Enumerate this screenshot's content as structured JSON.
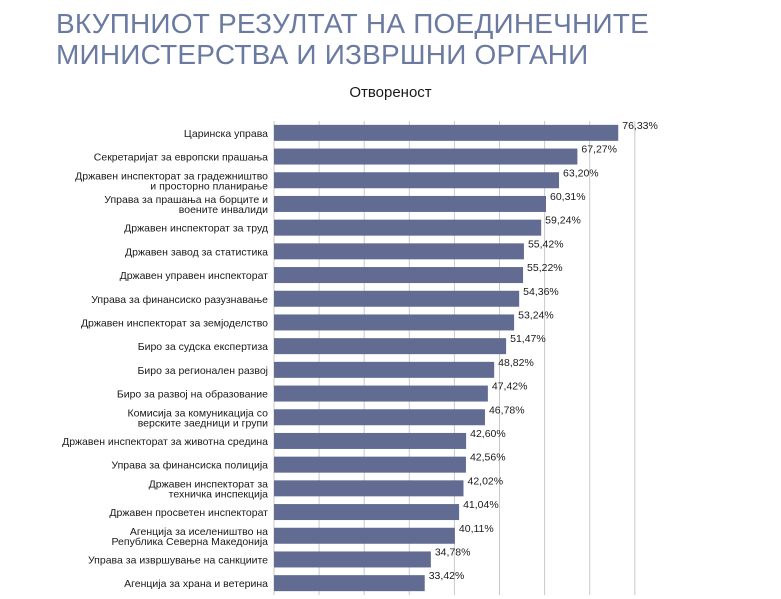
{
  "page": {
    "title_line1": "ВКУПНИОТ РЕЗУЛТАТ НА ПОЕДИНЕЧНИТЕ",
    "title_line2": "МИНИСТЕРСТВА И ИЗВРШНИ ОРГАНИ"
  },
  "chart_data": {
    "type": "bar",
    "orientation": "horizontal",
    "title": "Отвореност",
    "xlabel": "",
    "ylabel": "",
    "xlim": [
      0,
      80
    ],
    "grid": true,
    "bar_color": "#626b92",
    "categories": [
      [
        "Царинска управа"
      ],
      [
        "Секретаријат за европски прашања"
      ],
      [
        "Државен инспекторат за градежништво",
        "и просторно планирање"
      ],
      [
        "Управа за прашања на борците и",
        "воените инвалиди"
      ],
      [
        "Државен инспекторат за труд"
      ],
      [
        "Државен завод за статистика"
      ],
      [
        "Државен управен инспекторат"
      ],
      [
        "Управа за финансиско разузнавање"
      ],
      [
        "Државен инспекторат за земјоделство"
      ],
      [
        "Биро за судска експертиза"
      ],
      [
        "Биро за регионален развој"
      ],
      [
        "Биро за развој на образование"
      ],
      [
        "Комисија за комуникација со",
        "верските заедници и групи"
      ],
      [
        "Државен инспекторат за животна средина"
      ],
      [
        "Управа за финансиска полиција"
      ],
      [
        "Државен инспекторат за",
        "техничка инспекција"
      ],
      [
        "Државен просветен инспекторат"
      ],
      [
        "Агенција за иселеништво на",
        "Република Северна Македонија"
      ],
      [
        "Управа за извршување на санкциите"
      ],
      [
        "Агенција за храна и ветерина"
      ]
    ],
    "values": [
      76.33,
      67.27,
      63.2,
      60.31,
      59.24,
      55.42,
      55.22,
      54.36,
      53.24,
      51.47,
      48.82,
      47.42,
      46.78,
      42.6,
      42.56,
      42.02,
      41.04,
      40.11,
      34.78,
      33.42
    ],
    "value_labels": [
      "76,33%",
      "67,27%",
      "63,20%",
      "60,31%",
      "59,24%",
      "55,42%",
      "55,22%",
      "54,36%",
      "53,24%",
      "51,47%",
      "48,82%",
      "47,42%",
      "46,78%",
      "42,60%",
      "42,56%",
      "42,02%",
      "41,04%",
      "40,11%",
      "34,78%",
      "33,42%"
    ]
  }
}
